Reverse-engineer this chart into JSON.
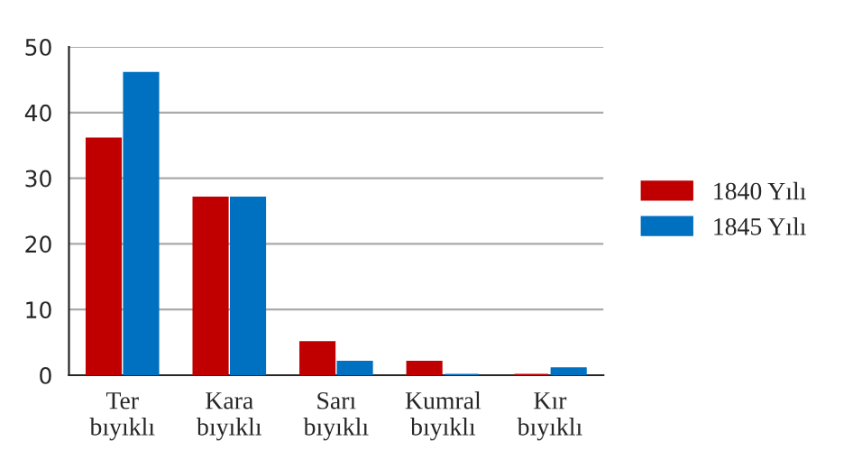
{
  "chart_data": {
    "type": "bar",
    "categories": [
      "Ter\nbıyıklı",
      "Kara\nbıyıklı",
      "Sarı\nbıyıklı",
      "Kumral\nbıyıklı",
      "Kır\nbıyıklı"
    ],
    "series": [
      {
        "name": "1840 Yılı",
        "color": "#c00000",
        "values": [
          36,
          27,
          5,
          2,
          0
        ]
      },
      {
        "name": "1845 Yılı",
        "color": "#0070c0",
        "values": [
          46,
          27,
          2,
          0,
          1
        ]
      }
    ],
    "ylim": [
      0,
      50
    ],
    "yticks": [
      0,
      10,
      20,
      30,
      40,
      50
    ],
    "grid": "y",
    "legend": "right"
  }
}
